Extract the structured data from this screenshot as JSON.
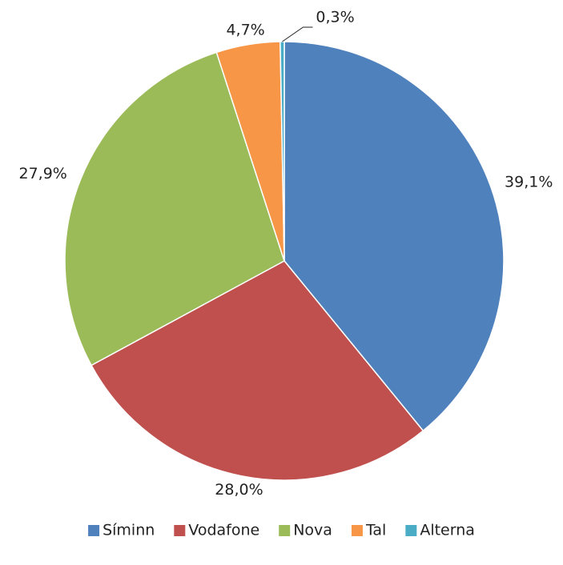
{
  "chart_data": {
    "type": "pie",
    "categories": [
      "Síminn",
      "Vodafone",
      "Nova",
      "Tal",
      "Alterna"
    ],
    "values": [
      39.1,
      28.0,
      27.9,
      4.7,
      0.3
    ],
    "value_labels": [
      "39,1%",
      "28,0%",
      "27,9%",
      "4,7%",
      "0,3%"
    ],
    "colors": [
      "#4f81bd",
      "#c0504d",
      "#9bbb59",
      "#f79646",
      "#4bacc6"
    ],
    "legend": "bottom"
  }
}
